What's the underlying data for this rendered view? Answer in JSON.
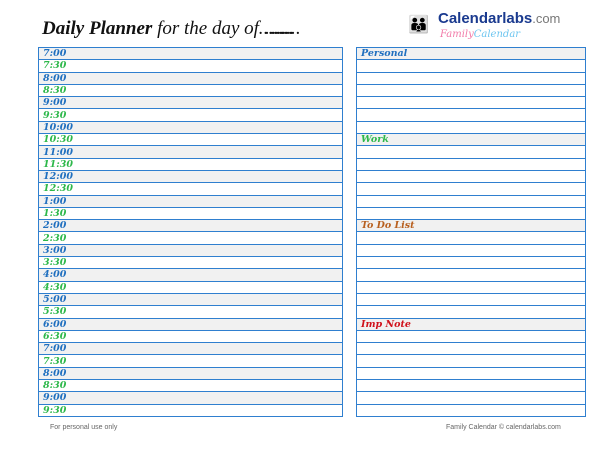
{
  "header": {
    "title_bold": "Daily Planner",
    "title_rest": " for the day of……………….."
  },
  "logo": {
    "brand": "Calendarlabs",
    "brand_suffix": ".com",
    "sub_a": "Family",
    "sub_b": "Calendar",
    "icon": "family-people-icon"
  },
  "colors": {
    "hour": "#1f6fbf",
    "half_hour": "#2db84a",
    "border": "#2f7fcf"
  },
  "schedule": [
    "7:00",
    "7:30",
    "8:00",
    "8:30",
    "9:00",
    "9:30",
    "10:00",
    "10:30",
    "11:00",
    "11:30",
    "12:00",
    "12:30",
    "1:00",
    "1:30",
    "2:00",
    "2:30",
    "3:00",
    "3:30",
    "4:00",
    "4:30",
    "5:00",
    "5:30",
    "6:00",
    "6:30",
    "7:00",
    "7:30",
    "8:00",
    "8:30",
    "9:00",
    "9:30"
  ],
  "sections": [
    {
      "label": "Personal",
      "row": 0,
      "color": "#1f6fbf"
    },
    {
      "label": "Work",
      "row": 7,
      "color": "#2db84a"
    },
    {
      "label": "To Do List",
      "row": 14,
      "color": "#b8601f"
    },
    {
      "label": "Imp Note",
      "row": 22,
      "color": "#d0101a"
    }
  ],
  "footer": {
    "left": "For personal use only",
    "right": "Family  Calendar  © calendarlabs.com"
  }
}
